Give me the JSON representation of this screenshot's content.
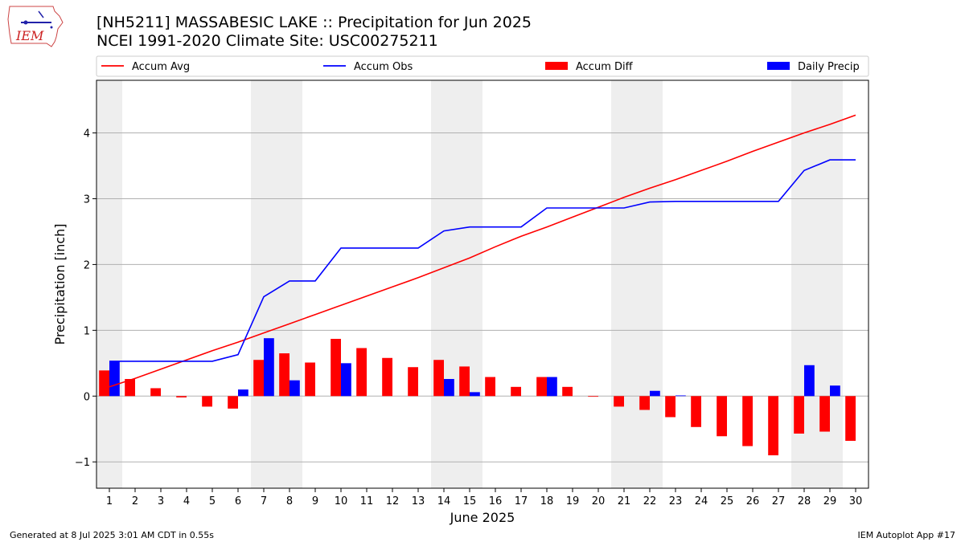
{
  "header": {
    "title_line1": "[NH5211] MASSABESIC LAKE :: Precipitation for Jun 2025",
    "title_line2": "NCEI 1991-2020 Climate Site: USC00275211",
    "logo_text": "IEM"
  },
  "footer": {
    "left": "Generated at 8 Jul 2025 3:01 AM CDT in 0.55s",
    "right": "IEM Autoplot App #17"
  },
  "colors": {
    "accum_avg": "#ff0000",
    "accum_obs": "#0000ff",
    "accum_diff": "#ff0000",
    "daily_precip": "#0000ff",
    "weekend_shade": "#eeeeee",
    "grid": "#b0b0b0"
  },
  "chart_data": {
    "type": "bar",
    "xlabel": "June 2025",
    "ylabel": "Precipitation [inch]",
    "ylim": [
      -1.4,
      4.8
    ],
    "yticks": [
      -1,
      0,
      1,
      2,
      3,
      4
    ],
    "ytick_labels": [
      "−1",
      "0",
      "1",
      "2",
      "3",
      "4"
    ],
    "xlim": [
      0.5,
      30.5
    ],
    "days": [
      1,
      2,
      3,
      4,
      5,
      6,
      7,
      8,
      9,
      10,
      11,
      12,
      13,
      14,
      15,
      16,
      17,
      18,
      19,
      20,
      21,
      22,
      23,
      24,
      25,
      26,
      27,
      28,
      29,
      30
    ],
    "weekend_spans": [
      [
        0.5,
        1.5
      ],
      [
        6.5,
        8.5
      ],
      [
        13.5,
        15.5
      ],
      [
        20.5,
        22.5
      ],
      [
        27.5,
        29.5
      ]
    ],
    "grid": "y",
    "legend_position": "top",
    "legend": [
      {
        "label": "Accum Avg",
        "kind": "line",
        "color": "#ff0000"
      },
      {
        "label": "Accum Obs",
        "kind": "line",
        "color": "#0000ff"
      },
      {
        "label": "Accum Diff",
        "kind": "bar",
        "color": "#ff0000"
      },
      {
        "label": "Daily Precip",
        "kind": "bar",
        "color": "#0000ff"
      }
    ],
    "series": [
      {
        "name": "Accum Avg",
        "type": "line",
        "values": [
          0.14,
          0.27,
          0.41,
          0.55,
          0.69,
          0.82,
          0.96,
          1.1,
          1.24,
          1.38,
          1.52,
          1.66,
          1.8,
          1.95,
          2.1,
          2.27,
          2.43,
          2.57,
          2.72,
          2.87,
          3.02,
          3.16,
          3.29,
          3.43,
          3.57,
          3.72,
          3.86,
          4.0,
          4.13,
          4.27
        ]
      },
      {
        "name": "Accum Obs",
        "type": "line",
        "values": [
          0.53,
          0.53,
          0.53,
          0.53,
          0.53,
          0.63,
          1.51,
          1.75,
          1.75,
          2.25,
          2.25,
          2.25,
          2.25,
          2.51,
          2.57,
          2.57,
          2.57,
          2.86,
          2.86,
          2.86,
          2.86,
          2.95,
          2.96,
          2.96,
          2.96,
          2.96,
          2.96,
          3.43,
          3.59,
          3.59
        ]
      },
      {
        "name": "Accum Diff",
        "type": "bar",
        "values": [
          0.39,
          0.26,
          0.12,
          -0.02,
          -0.16,
          -0.19,
          0.55,
          0.65,
          0.51,
          0.87,
          0.73,
          0.58,
          0.44,
          0.55,
          0.45,
          0.29,
          0.14,
          0.29,
          0.14,
          -0.01,
          -0.16,
          -0.21,
          -0.32,
          -0.47,
          -0.61,
          -0.76,
          -0.9,
          -0.57,
          -0.54,
          -0.68
        ]
      },
      {
        "name": "Daily Precip",
        "type": "bar",
        "values": [
          0.53,
          0,
          0,
          0,
          0,
          0.1,
          0.88,
          0.24,
          0,
          0.5,
          0,
          0,
          0,
          0.26,
          0.06,
          0,
          0,
          0.29,
          0,
          0,
          0,
          0.08,
          0.01,
          0,
          0,
          0,
          0,
          0.47,
          0.16,
          0
        ]
      }
    ]
  }
}
